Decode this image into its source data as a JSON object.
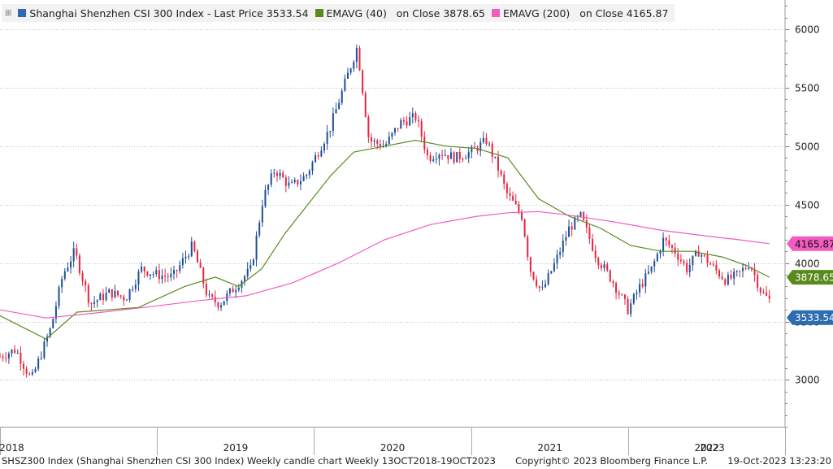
{
  "legend": {
    "main": "Shanghai Shenzhen CSI 300 Index - Last Price 3533.54",
    "ema40": "EMAVG (40)   on Close 3878.65",
    "ema200": "EMAVG (200)   on Close 4165.87"
  },
  "footer": {
    "left": "SHSZ300 Index (Shanghai Shenzhen CSI 300 Index) Weekly candle chart  Weekly 13OCT2018-19OCT2023",
    "copyright": "Copyright© 2023 Bloomberg Finance L.P.",
    "timestamp": "19-Oct-2023 13:23:20"
  },
  "colors": {
    "up": "#1f4e96",
    "down": "#e8243f",
    "ema40": "#5a8a1e",
    "ema200": "#f25bbf",
    "last": "#2d6cb0"
  },
  "chart_data": {
    "type": "line",
    "title": "Shanghai Shenzhen CSI 300 Index Weekly candle chart",
    "ylim": [
      2600,
      6250
    ],
    "y_ticks": [
      3000,
      3500,
      4000,
      4500,
      5000,
      5500,
      6000
    ],
    "x_ticks": [
      "2018",
      "2019",
      "2020",
      "2021",
      "2022",
      "2023"
    ],
    "x_tick_pos": [
      0.0,
      0.2,
      0.4,
      0.6,
      0.8,
      1.0
    ],
    "series": [
      {
        "name": "Last Price",
        "points": [
          [
            0.0,
            3200
          ],
          [
            0.02,
            3260
          ],
          [
            0.04,
            3000
          ],
          [
            0.065,
            3450
          ],
          [
            0.08,
            3900
          ],
          [
            0.095,
            4100
          ],
          [
            0.115,
            3650
          ],
          [
            0.14,
            3750
          ],
          [
            0.16,
            3700
          ],
          [
            0.18,
            3950
          ],
          [
            0.2,
            3900
          ],
          [
            0.22,
            3880
          ],
          [
            0.245,
            4150
          ],
          [
            0.265,
            3700
          ],
          [
            0.28,
            3650
          ],
          [
            0.3,
            3800
          ],
          [
            0.32,
            3950
          ],
          [
            0.335,
            4550
          ],
          [
            0.35,
            4800
          ],
          [
            0.37,
            4650
          ],
          [
            0.39,
            4750
          ],
          [
            0.42,
            5150
          ],
          [
            0.44,
            5550
          ],
          [
            0.455,
            5850
          ],
          [
            0.47,
            5050
          ],
          [
            0.49,
            5000
          ],
          [
            0.51,
            5200
          ],
          [
            0.53,
            5250
          ],
          [
            0.545,
            4900
          ],
          [
            0.56,
            4950
          ],
          [
            0.58,
            4900
          ],
          [
            0.6,
            4950
          ],
          [
            0.62,
            5050
          ],
          [
            0.635,
            4800
          ],
          [
            0.645,
            4600
          ],
          [
            0.665,
            4400
          ],
          [
            0.675,
            3950
          ],
          [
            0.69,
            3750
          ],
          [
            0.71,
            4050
          ],
          [
            0.725,
            4300
          ],
          [
            0.74,
            4400
          ],
          [
            0.76,
            4050
          ],
          [
            0.78,
            3850
          ],
          [
            0.8,
            3600
          ],
          [
            0.815,
            3800
          ],
          [
            0.83,
            3950
          ],
          [
            0.845,
            4200
          ],
          [
            0.86,
            4100
          ],
          [
            0.875,
            3950
          ],
          [
            0.89,
            4100
          ],
          [
            0.91,
            3950
          ],
          [
            0.925,
            3850
          ],
          [
            0.94,
            3900
          ],
          [
            0.955,
            4000
          ],
          [
            0.97,
            3750
          ],
          [
            0.985,
            3650
          ],
          [
            1.0,
            3533.54
          ]
        ]
      },
      {
        "name": "EMAVG (40)",
        "points": [
          [
            0.0,
            3550
          ],
          [
            0.06,
            3350
          ],
          [
            0.1,
            3580
          ],
          [
            0.18,
            3620
          ],
          [
            0.24,
            3800
          ],
          [
            0.28,
            3880
          ],
          [
            0.31,
            3800
          ],
          [
            0.34,
            3950
          ],
          [
            0.37,
            4250
          ],
          [
            0.4,
            4500
          ],
          [
            0.43,
            4750
          ],
          [
            0.46,
            4950
          ],
          [
            0.5,
            5000
          ],
          [
            0.54,
            5050
          ],
          [
            0.58,
            5000
          ],
          [
            0.62,
            4980
          ],
          [
            0.66,
            4900
          ],
          [
            0.7,
            4550
          ],
          [
            0.74,
            4400
          ],
          [
            0.78,
            4300
          ],
          [
            0.82,
            4150
          ],
          [
            0.86,
            4100
          ],
          [
            0.9,
            4100
          ],
          [
            0.94,
            4050
          ],
          [
            0.97,
            3980
          ],
          [
            1.0,
            3878.65
          ]
        ]
      },
      {
        "name": "EMAVG (200)",
        "points": [
          [
            0.0,
            3600
          ],
          [
            0.06,
            3530
          ],
          [
            0.12,
            3570
          ],
          [
            0.2,
            3630
          ],
          [
            0.26,
            3680
          ],
          [
            0.32,
            3720
          ],
          [
            0.38,
            3830
          ],
          [
            0.44,
            4000
          ],
          [
            0.5,
            4200
          ],
          [
            0.56,
            4330
          ],
          [
            0.62,
            4400
          ],
          [
            0.66,
            4430
          ],
          [
            0.7,
            4440
          ],
          [
            0.74,
            4410
          ],
          [
            0.8,
            4350
          ],
          [
            0.86,
            4280
          ],
          [
            0.92,
            4230
          ],
          [
            0.96,
            4200
          ],
          [
            1.0,
            4165.87
          ]
        ]
      }
    ],
    "last_values": [
      "4165.87",
      "3878.65",
      "3533.54"
    ]
  }
}
